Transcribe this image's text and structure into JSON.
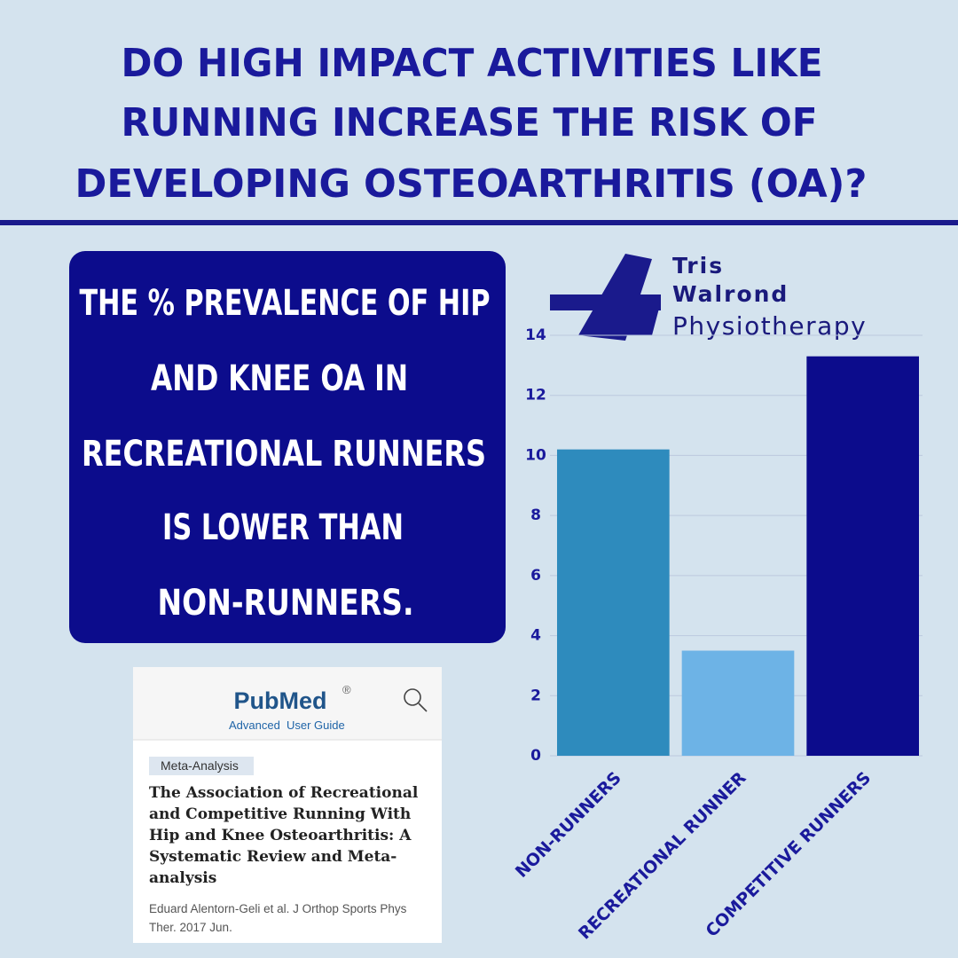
{
  "header": {
    "title": [
      "DO HIGH IMPACT ACTIVITIES LIKE",
      "RUNNING INCREASE THE RISK OF",
      "DEVELOPING OSTEOARTHRITIS (OA)?"
    ]
  },
  "callout": {
    "lines": [
      "THE % PREVALENCE OF HIP",
      "AND KNEE OA IN",
      "RECREATIONAL RUNNERS",
      "IS LOWER THAN",
      "NON-RUNNERS."
    ]
  },
  "logo": {
    "lines": [
      "Tris",
      "Walrond",
      "Physiotherapy"
    ]
  },
  "pubmed": {
    "logo": "PubMed",
    "registered": "®",
    "links": [
      "Advanced",
      "User Guide"
    ],
    "tag": "Meta-Analysis",
    "title": [
      "The Association of Recreational",
      "and Competitive Running With",
      "Hip and Knee Osteoarthritis: A",
      "Systematic Review and Meta-",
      "analysis"
    ],
    "citation": [
      "Eduard Alentorn-Geli et al. J Orthop Sports Phys",
      "Ther. 2017 Jun."
    ]
  },
  "chart_data": {
    "type": "bar",
    "categories": [
      "NON-RUNNERS",
      "RECREATIONAL RUNNER",
      "COMPETITIVE RUNNERS"
    ],
    "values": [
      10.2,
      3.5,
      13.3
    ],
    "colors": [
      "#2e8bbd",
      "#6db3e6",
      "#0c0c8c"
    ],
    "ylim": [
      0,
      14
    ],
    "yticks": [
      0,
      2,
      4,
      6,
      8,
      10,
      12,
      14
    ],
    "grid": true
  }
}
